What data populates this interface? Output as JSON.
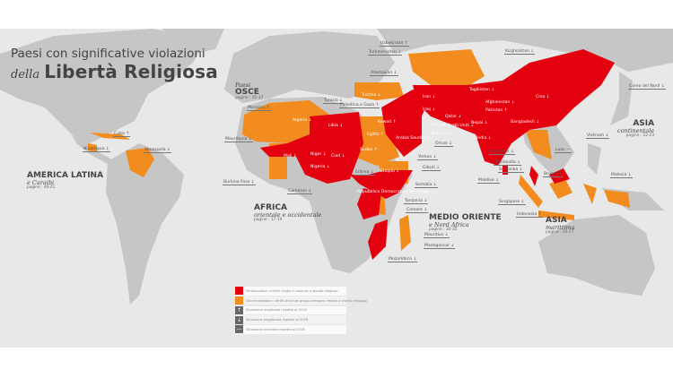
{
  "title": {
    "line1": "Paesi con significative violazioni",
    "prefix": "della",
    "main": "Libertà Religiosa"
  },
  "colors": {
    "persecution": "#e3000f",
    "discrimination": "#f28c1e",
    "land": "#c6c6c6",
    "sea": "#e8e8e8",
    "arrow_badge": "#666666"
  },
  "regions": [
    {
      "name": "Paesi",
      "sub": "OSCE",
      "pages": "pagine : 35-37"
    },
    {
      "name": "AMERICA LATINA",
      "sub": "e Caraibi",
      "pages": "pagine : 40-41"
    },
    {
      "name": "AFRICA",
      "sub": "orientale e occidentale",
      "pages": "pagine : 17-19"
    },
    {
      "name": "MEDIO ORIENTE",
      "sub": "e Nord Africa",
      "pages": "pagine : 30-32"
    },
    {
      "name": "ASIA",
      "sub": "continentale",
      "pages": "pagine : 22-23"
    },
    {
      "name": "ASIA",
      "sub": "marittima",
      "pages": "pagine : 26-27"
    }
  ],
  "countries": [
    {
      "name": "Uzbekistan",
      "trend": "↑"
    },
    {
      "name": "Turkmenistan",
      "trend": "↓"
    },
    {
      "name": "Azerbaijan",
      "trend": "↓"
    },
    {
      "name": "Kirghizistan",
      "trend": "↓"
    },
    {
      "name": "Cina",
      "trend": "↓"
    },
    {
      "name": "Corea del Nord",
      "trend": "↓"
    },
    {
      "name": "Tagikistan",
      "trend": "↓"
    },
    {
      "name": "Afghanistan",
      "trend": "↓"
    },
    {
      "name": "Pakistan",
      "trend": "↑"
    },
    {
      "name": "Nepal",
      "trend": "↓"
    },
    {
      "name": "Bangladesh",
      "trend": "↓"
    },
    {
      "name": "India",
      "trend": "↓"
    },
    {
      "name": "Iran",
      "trend": "↓"
    },
    {
      "name": "Iraq",
      "trend": "↓"
    },
    {
      "name": "Qatar",
      "trend": "↓"
    },
    {
      "name": "Oman",
      "trend": "↓"
    },
    {
      "name": "Yemen",
      "trend": "↓"
    },
    {
      "name": "Gibuti",
      "trend": "↓"
    },
    {
      "name": "Somalia",
      "trend": "↓"
    },
    {
      "name": "Tanzania",
      "trend": "↓"
    },
    {
      "name": "Comore",
      "trend": "↓"
    },
    {
      "name": "Mauritius",
      "trend": "↓"
    },
    {
      "name": "Madagascar",
      "trend": "↓"
    },
    {
      "name": "Mozambico",
      "trend": "↓"
    },
    {
      "name": "Eritrea",
      "trend": "↓"
    },
    {
      "name": "Etiopia",
      "trend": "↓"
    },
    {
      "name": "Sudan",
      "trend": "↑"
    },
    {
      "name": "Egitto",
      "trend": "↑"
    },
    {
      "name": "Arabia Saudita",
      "trend": "↓"
    },
    {
      "name": "Kuwait",
      "trend": "↑"
    },
    {
      "name": "Turchia",
      "trend": "↓"
    },
    {
      "name": "Tunisia",
      "trend": "↓"
    },
    {
      "name": "Palestina e Gaza",
      "trend": "↑"
    },
    {
      "name": "Marocco",
      "trend": "↑"
    },
    {
      "name": "Algeria",
      "trend": "↓"
    },
    {
      "name": "Libia",
      "trend": "↓"
    },
    {
      "name": "Mauritania",
      "trend": "↓"
    },
    {
      "name": "Mali",
      "trend": "↓"
    },
    {
      "name": "Niger",
      "trend": "↓"
    },
    {
      "name": "Ciad",
      "trend": "↓"
    },
    {
      "name": "Nigeria",
      "trend": "↓"
    },
    {
      "name": "Burkina Faso",
      "trend": "↓"
    },
    {
      "name": "Camerun",
      "trend": "↓"
    },
    {
      "name": "Repubblica Democratica del Congo",
      "trend": "↓"
    },
    {
      "name": "Cuba",
      "trend": "↑"
    },
    {
      "name": "Nicaragua",
      "trend": "↓"
    },
    {
      "name": "Venezuela",
      "trend": "↓"
    },
    {
      "name": "Myanmar",
      "trend": "↓"
    },
    {
      "name": "Thailandia",
      "trend": "↓"
    },
    {
      "name": "Sri Lanka",
      "trend": "↓"
    },
    {
      "name": "Maldive",
      "trend": "↓"
    },
    {
      "name": "Brunei",
      "trend": "↓"
    },
    {
      "name": "Malesia",
      "trend": "↓"
    },
    {
      "name": "Singapore",
      "trend": "↓"
    },
    {
      "name": "Indonesia",
      "trend": "↑"
    },
    {
      "name": "Laos",
      "trend": "—"
    },
    {
      "name": "Vietnam",
      "trend": "↓"
    },
    {
      "name": "Emirati Arabi Uniti",
      "trend": "↓"
    },
    {
      "name": "Bahrein",
      "trend": "↓"
    }
  ],
  "legend": [
    {
      "symbol": "",
      "kind": "persecution",
      "text": "Persecuzione: crimini d'odio e violenze a sfondo religioso"
    },
    {
      "symbol": "",
      "kind": "discrimination",
      "text": "Discriminazione: i diritti di alcuni gruppi vengono limitati a sfondo religioso"
    },
    {
      "symbol": "↑",
      "kind": "improved",
      "text": "Situazione migliorata rispetto al 2016"
    },
    {
      "symbol": "↓",
      "kind": "worsened",
      "text": "Situazione peggiorata rispetto al 2016"
    },
    {
      "symbol": "—",
      "kind": "unchanged",
      "text": "Situazione invariata rispetto al 2016"
    }
  ]
}
